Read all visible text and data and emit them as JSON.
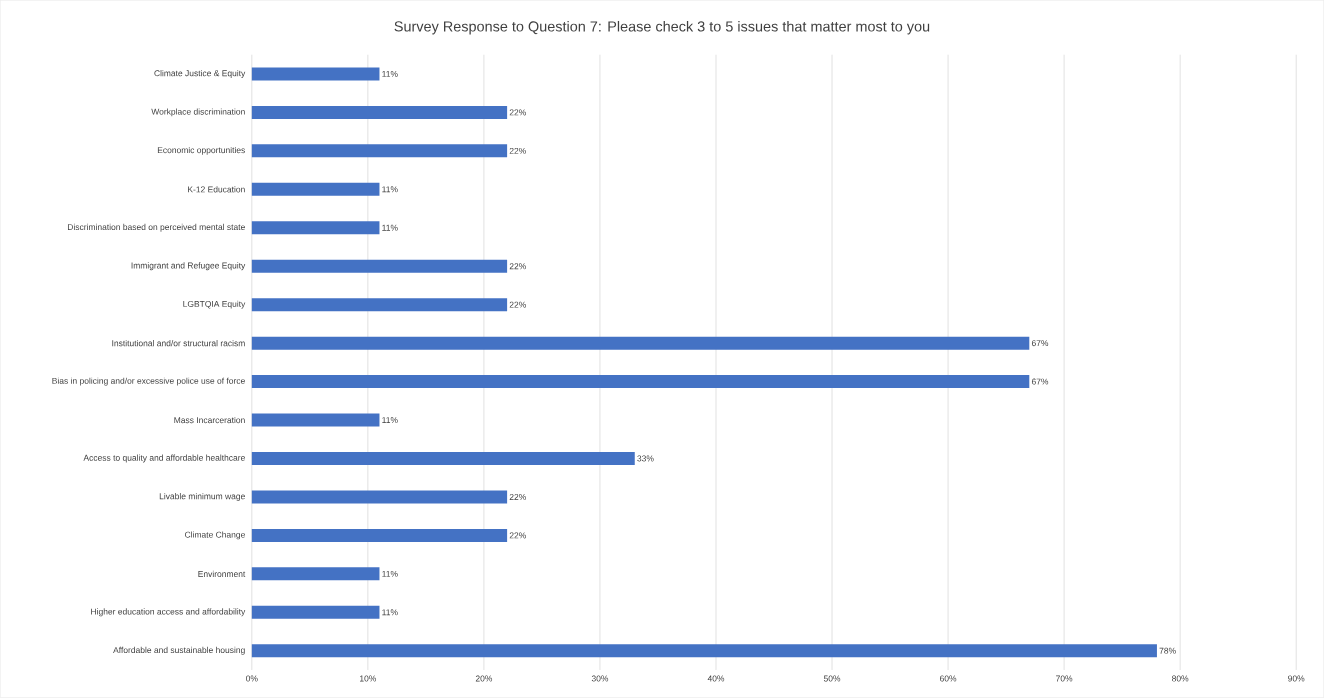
{
  "chart_data": {
    "type": "bar",
    "orientation": "horizontal",
    "title": "Survey Response to Question 7: Please check 3 to 5 issues that matter most to you",
    "categories": [
      "Climate Justice & Equity",
      "Workplace discrimination",
      "Economic opportunities",
      "K-12 Education",
      "Discrimination based on perceived mental state",
      "Immigrant and Refugee Equity",
      "LGBTQIA Equity",
      "Institutional and/or structural racism",
      "Bias in policing and/or excessive police use of force",
      "Mass Incarceration",
      "Access to quality and affordable healthcare",
      "Livable minimum wage",
      "Climate Change",
      "Environment",
      "Higher education access and affordability",
      "Affordable and sustainable housing"
    ],
    "values": [
      11,
      22,
      22,
      11,
      11,
      22,
      22,
      67,
      67,
      11,
      33,
      22,
      22,
      11,
      11,
      78
    ],
    "value_labels": [
      "11%",
      "22%",
      "22%",
      "11%",
      "11%",
      "22%",
      "22%",
      "67%",
      "67%",
      "11%",
      "33%",
      "22%",
      "22%",
      "11%",
      "11%",
      "78%"
    ],
    "color": "#4472c4",
    "xlim": [
      0,
      90
    ],
    "xticks": [
      {
        "value": 0,
        "label": "0%"
      },
      {
        "value": 10,
        "label": "10%"
      },
      {
        "value": 20,
        "label": "20%"
      },
      {
        "value": 30,
        "label": "30%"
      },
      {
        "value": 40,
        "label": "40%"
      },
      {
        "value": 50,
        "label": "50%"
      },
      {
        "value": 60,
        "label": "60%"
      },
      {
        "value": 70,
        "label": "70%"
      },
      {
        "value": 80,
        "label": "80%"
      },
      {
        "value": 90,
        "label": "90%"
      }
    ],
    "grid": "x"
  }
}
